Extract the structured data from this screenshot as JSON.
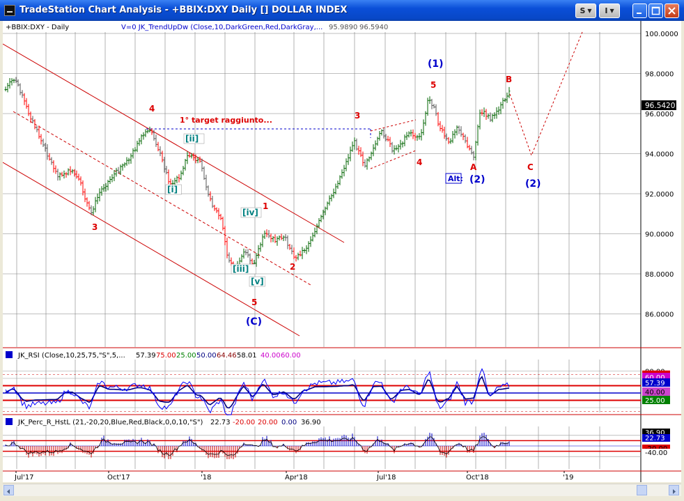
{
  "window": {
    "title": "TradeStation Chart Analysis - +BBIX:DXY Daily [] DOLLAR INDEX",
    "s_button": "S",
    "i_button": "I"
  },
  "colors": {
    "background": "#ffffff",
    "grid": "#808080",
    "channel": "#cc0000",
    "wave_red": "#dd0000",
    "wave_blue": "#0000cc",
    "wave_teal": "#008080",
    "rsi_line": "#0000ff",
    "rsi_avg": "#000080",
    "bar_up": "#006400",
    "bar_down": "#ff0000"
  },
  "main_chart": {
    "symbol_label": "+BBIX:DXY - Daily",
    "indicator_header": "V=0  JK_TrendUpDw (Close,10,DarkGreen,Red,DarkGray,...",
    "header_values": [
      "95.9890",
      "96.5940"
    ],
    "price_ticks": [
      "100.0000",
      "98.0000",
      "96.0000",
      "94.0000",
      "92.0000",
      "90.0000",
      "88.0000",
      "86.0000"
    ],
    "last_price": "96.5420",
    "annotation": "1° target raggiunto...",
    "alt_box": "Alt:"
  },
  "wave_labels": [
    {
      "text": "4",
      "color": "red"
    },
    {
      "text": "3",
      "color": "red"
    },
    {
      "text": "[ii]",
      "color": "teal"
    },
    {
      "text": "[i]",
      "color": "teal"
    },
    {
      "text": "[iv]",
      "color": "teal"
    },
    {
      "text": "1",
      "color": "red"
    },
    {
      "text": "[iii]",
      "color": "teal"
    },
    {
      "text": "[v]",
      "color": "teal"
    },
    {
      "text": "2",
      "color": "red"
    },
    {
      "text": "5",
      "color": "red"
    },
    {
      "text": "(C)",
      "color": "blue"
    },
    {
      "text": "3",
      "color": "red"
    },
    {
      "text": "(1)",
      "color": "blue"
    },
    {
      "text": "5",
      "color": "red"
    },
    {
      "text": "4",
      "color": "red"
    },
    {
      "text": "A",
      "color": "red"
    },
    {
      "text": "(2)",
      "color": "blue"
    },
    {
      "text": "B",
      "color": "red"
    },
    {
      "text": "C",
      "color": "red"
    },
    {
      "text": "(2)",
      "color": "blue"
    }
  ],
  "rsi_panel": {
    "header": [
      "JK_RSI (Close,10,25,75,\"S\",5,...",
      "57.39",
      "75.00",
      "25.00",
      "50.00",
      "64.46",
      "58.01",
      "40.00",
      "60.00"
    ],
    "scale_tags": [
      "80.00",
      "75.00",
      "60.00",
      "57.39",
      "40.00",
      "25.00"
    ]
  },
  "perc_r_panel": {
    "header": [
      "JK_Perc_R_HstL (21,-20,20,Blue,Red,Black,0,0,10,\"S\")",
      "22.73",
      "-20.00",
      "20.00",
      "0.00",
      "36.90"
    ],
    "scale_tags": [
      "36.90",
      "22.73",
      "-20.00",
      "-40.00"
    ]
  },
  "x_axis": [
    "Jul'17",
    "Oct'17",
    "'18",
    "Apr'18",
    "Jul'18",
    "Oct'18",
    "'19"
  ]
}
